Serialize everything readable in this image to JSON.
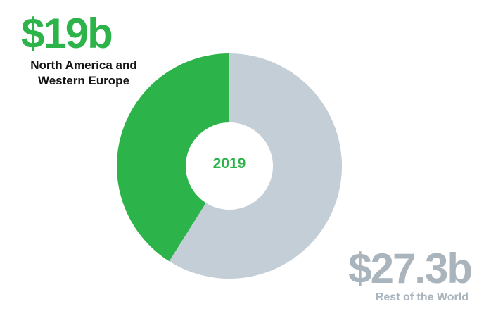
{
  "colors": {
    "north_america_western_europe": "#2cb34a",
    "rest_of_world": "#c3ced6",
    "label_dark": "#141414",
    "label_grey": "#a9b4bc"
  },
  "chart_data": {
    "type": "pie",
    "variant": "donut",
    "center_label": "2019",
    "slices": [
      {
        "name": "North America and Western Europe",
        "value": 19,
        "display_value": "$19b"
      },
      {
        "name": "Rest of the World",
        "value": 27.3,
        "display_value": "$27.3b"
      }
    ],
    "unit": "billion USD",
    "legend": "none"
  }
}
